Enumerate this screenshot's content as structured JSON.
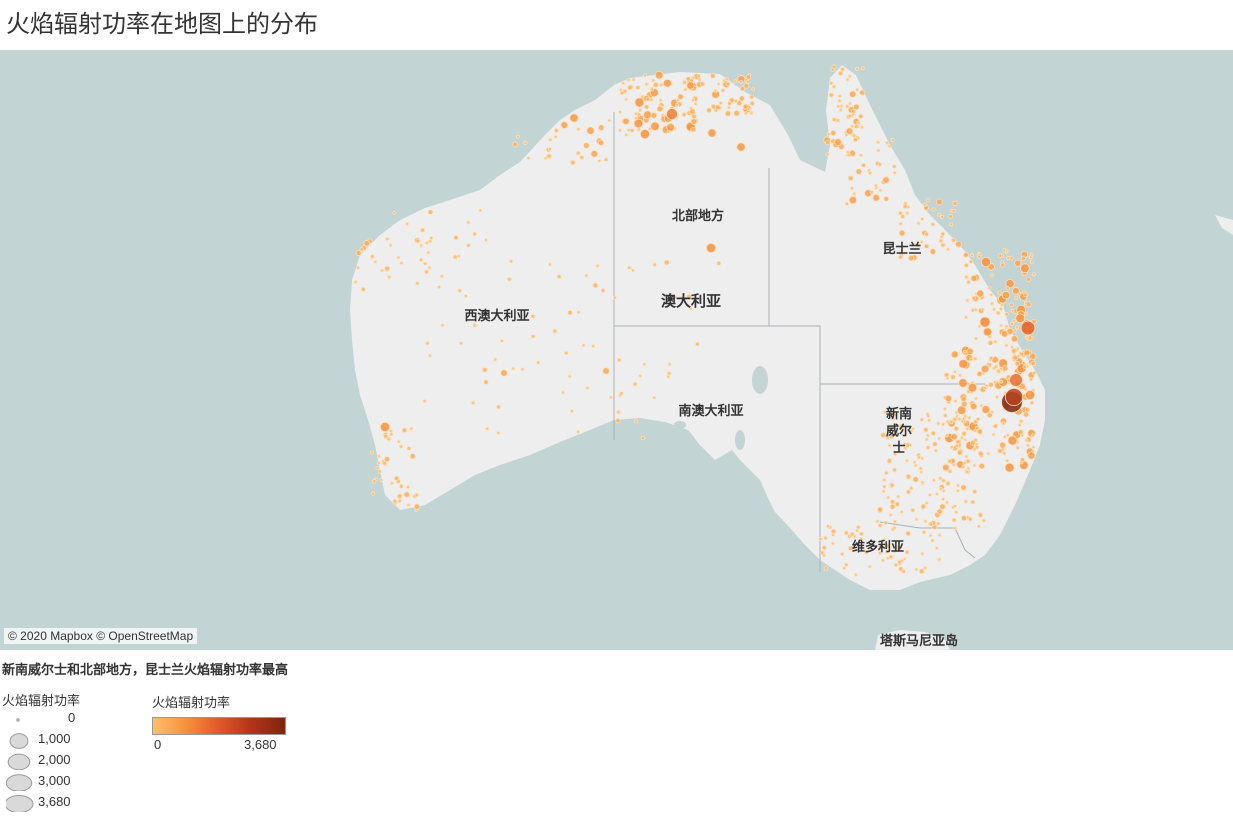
{
  "title": "火焰辐射功率在地图上的分布",
  "map": {
    "attribution": "© 2020 Mapbox © OpenStreetMap",
    "country_label": "澳大利亚",
    "states": [
      {
        "id": "wa",
        "name": "西澳大利亚"
      },
      {
        "id": "nt",
        "name": "北部地方"
      },
      {
        "id": "sa",
        "name": "南澳大利亚"
      },
      {
        "id": "qld",
        "name": "昆士兰"
      },
      {
        "id": "nsw",
        "name": "新南威尔士"
      },
      {
        "id": "vic",
        "name": "维多利亚"
      },
      {
        "id": "tas",
        "name": "塔斯马尼亚岛"
      }
    ],
    "colors": {
      "water": "#c3d4d4",
      "land": "#eeeeee",
      "border": "#a9b2b2",
      "low": "#fdbf6f",
      "high": "#7f2510"
    }
  },
  "caption": "新南威尔士和北部地方，昆士兰火焰辐射功率最高",
  "size_legend": {
    "title": "火焰辐射功率",
    "items": [
      {
        "label": "0",
        "value": 0
      },
      {
        "label": "1,000",
        "value": 1000
      },
      {
        "label": "2,000",
        "value": 2000
      },
      {
        "label": "3,000",
        "value": 3000
      },
      {
        "label": "3,680",
        "value": 3680
      }
    ]
  },
  "color_legend": {
    "title": "火焰辐射功率",
    "min_label": "0",
    "max_label": "3,680",
    "min": 0,
    "max": 3680
  }
}
